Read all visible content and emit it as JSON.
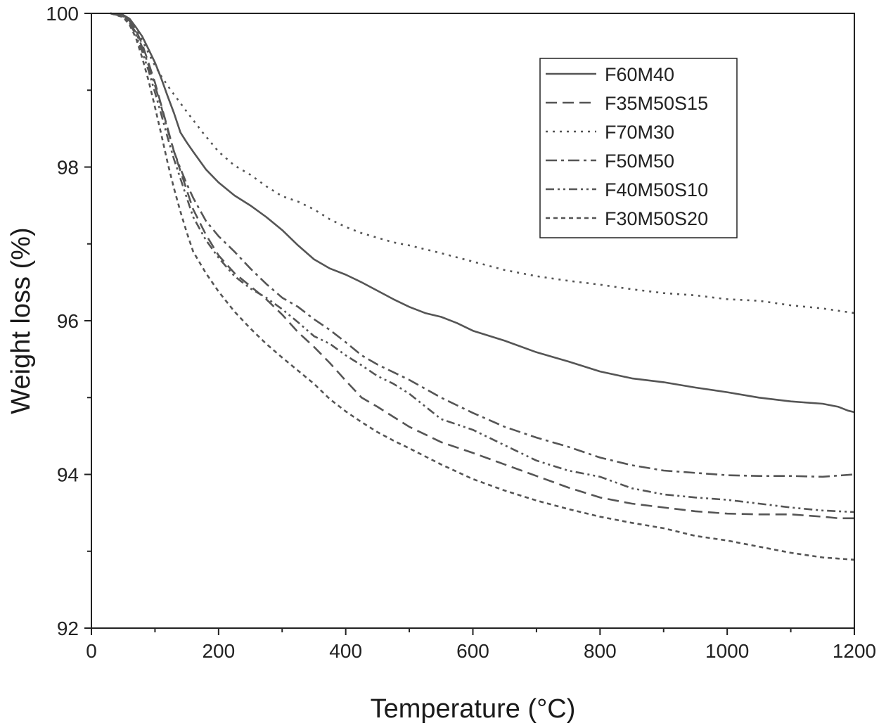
{
  "chart_data": {
    "type": "line",
    "title": "",
    "xlabel": "Temperature (°C)",
    "ylabel": "Weight loss (%)",
    "xlim": [
      0,
      1200
    ],
    "ylim": [
      92,
      100
    ],
    "x_ticks": [
      "0",
      "200",
      "400",
      "600",
      "800",
      "1000",
      "1200"
    ],
    "y_ticks": [
      "92",
      "94",
      "96",
      "98",
      "100"
    ],
    "grid": false,
    "legend_position": "top-right",
    "line_color": "#555555",
    "series": [
      {
        "name": "F60M40",
        "style": "solid",
        "x": [
          30,
          50,
          60,
          70,
          80,
          90,
          100,
          110,
          120,
          130,
          140,
          150,
          160,
          180,
          200,
          225,
          250,
          275,
          300,
          325,
          350,
          375,
          400,
          425,
          450,
          475,
          500,
          525,
          550,
          575,
          600,
          650,
          700,
          750,
          800,
          850,
          900,
          950,
          1000,
          1050,
          1100,
          1150,
          1175,
          1190,
          1200
        ],
        "y": [
          100,
          99.98,
          99.93,
          99.82,
          99.7,
          99.53,
          99.36,
          99.15,
          98.92,
          98.7,
          98.45,
          98.32,
          98.2,
          97.97,
          97.8,
          97.63,
          97.5,
          97.35,
          97.18,
          96.98,
          96.8,
          96.68,
          96.6,
          96.5,
          96.39,
          96.28,
          96.18,
          96.1,
          96.05,
          95.97,
          95.87,
          95.74,
          95.59,
          95.47,
          95.34,
          95.25,
          95.2,
          95.13,
          95.07,
          95.0,
          94.95,
          94.92,
          94.88,
          94.83,
          94.81
        ]
      },
      {
        "name": "F35M50S15",
        "style": "dashed",
        "x": [
          30,
          50,
          60,
          70,
          80,
          90,
          100,
          110,
          120,
          130,
          140,
          150,
          160,
          180,
          200,
          225,
          250,
          275,
          300,
          325,
          350,
          375,
          400,
          425,
          450,
          475,
          500,
          550,
          600,
          650,
          700,
          750,
          800,
          850,
          900,
          950,
          1000,
          1050,
          1100,
          1150,
          1175,
          1200
        ],
        "y": [
          100,
          99.97,
          99.9,
          99.78,
          99.6,
          99.35,
          99.1,
          98.8,
          98.5,
          98.2,
          97.95,
          97.7,
          97.45,
          97.12,
          96.85,
          96.62,
          96.45,
          96.28,
          96.08,
          95.85,
          95.66,
          95.45,
          95.22,
          95.0,
          94.88,
          94.75,
          94.62,
          94.42,
          94.28,
          94.13,
          93.98,
          93.83,
          93.7,
          93.62,
          93.57,
          93.52,
          93.49,
          93.48,
          93.48,
          93.45,
          93.43,
          93.43
        ]
      },
      {
        "name": "F70M30",
        "style": "dotted",
        "x": [
          30,
          50,
          60,
          70,
          80,
          90,
          100,
          110,
          125,
          150,
          175,
          200,
          225,
          250,
          275,
          300,
          325,
          350,
          375,
          400,
          425,
          450,
          475,
          500,
          550,
          600,
          650,
          700,
          750,
          800,
          850,
          900,
          950,
          1000,
          1050,
          1100,
          1150,
          1200
        ],
        "y": [
          100,
          99.98,
          99.9,
          99.8,
          99.65,
          99.48,
          99.32,
          99.18,
          99.0,
          98.72,
          98.45,
          98.2,
          98.02,
          97.9,
          97.75,
          97.62,
          97.55,
          97.45,
          97.32,
          97.22,
          97.14,
          97.08,
          97.02,
          96.98,
          96.88,
          96.77,
          96.66,
          96.58,
          96.52,
          96.47,
          96.41,
          96.36,
          96.33,
          96.28,
          96.26,
          96.2,
          96.16,
          96.1
        ]
      },
      {
        "name": "F50M50",
        "style": "dashdot",
        "x": [
          30,
          50,
          60,
          70,
          80,
          90,
          100,
          110,
          120,
          130,
          140,
          150,
          160,
          180,
          200,
          225,
          250,
          275,
          300,
          325,
          350,
          375,
          400,
          425,
          450,
          475,
          500,
          550,
          600,
          650,
          700,
          750,
          800,
          850,
          900,
          950,
          1000,
          1050,
          1100,
          1150,
          1200
        ],
        "y": [
          100,
          99.97,
          99.88,
          99.75,
          99.56,
          99.32,
          99.06,
          98.78,
          98.48,
          98.2,
          97.98,
          97.78,
          97.6,
          97.3,
          97.1,
          96.9,
          96.68,
          96.48,
          96.3,
          96.18,
          96.02,
          95.88,
          95.72,
          95.55,
          95.43,
          95.33,
          95.23,
          95.0,
          94.8,
          94.62,
          94.48,
          94.36,
          94.22,
          94.12,
          94.05,
          94.02,
          93.99,
          93.98,
          93.98,
          93.97,
          94.0
        ]
      },
      {
        "name": "F40M50S10",
        "style": "dashdotdot",
        "x": [
          30,
          50,
          60,
          70,
          80,
          90,
          100,
          110,
          120,
          130,
          140,
          150,
          160,
          180,
          200,
          225,
          250,
          275,
          300,
          325,
          350,
          375,
          400,
          425,
          450,
          475,
          500,
          550,
          600,
          650,
          700,
          750,
          800,
          850,
          900,
          950,
          1000,
          1050,
          1100,
          1150,
          1200
        ],
        "y": [
          100,
          99.96,
          99.87,
          99.72,
          99.5,
          99.25,
          98.97,
          98.68,
          98.38,
          98.1,
          97.85,
          97.6,
          97.35,
          97.05,
          96.82,
          96.58,
          96.42,
          96.3,
          96.15,
          95.98,
          95.8,
          95.7,
          95.55,
          95.42,
          95.28,
          95.18,
          95.05,
          94.72,
          94.58,
          94.38,
          94.18,
          94.05,
          93.97,
          93.82,
          93.74,
          93.7,
          93.67,
          93.62,
          93.57,
          93.53,
          93.51
        ]
      },
      {
        "name": "F30M50S20",
        "style": "shortdash",
        "x": [
          30,
          50,
          60,
          70,
          80,
          90,
          100,
          110,
          120,
          130,
          140,
          150,
          160,
          180,
          200,
          225,
          250,
          275,
          300,
          325,
          350,
          375,
          400,
          425,
          450,
          475,
          500,
          550,
          600,
          650,
          700,
          750,
          800,
          850,
          900,
          950,
          1000,
          1050,
          1100,
          1150,
          1200
        ],
        "y": [
          100,
          99.95,
          99.85,
          99.68,
          99.42,
          99.12,
          98.78,
          98.42,
          98.05,
          97.72,
          97.42,
          97.15,
          96.9,
          96.62,
          96.38,
          96.12,
          95.9,
          95.7,
          95.52,
          95.35,
          95.18,
          94.98,
          94.82,
          94.68,
          94.55,
          94.44,
          94.34,
          94.13,
          93.94,
          93.79,
          93.66,
          93.55,
          93.45,
          93.37,
          93.3,
          93.2,
          93.14,
          93.06,
          92.98,
          92.92,
          92.89
        ]
      }
    ]
  }
}
